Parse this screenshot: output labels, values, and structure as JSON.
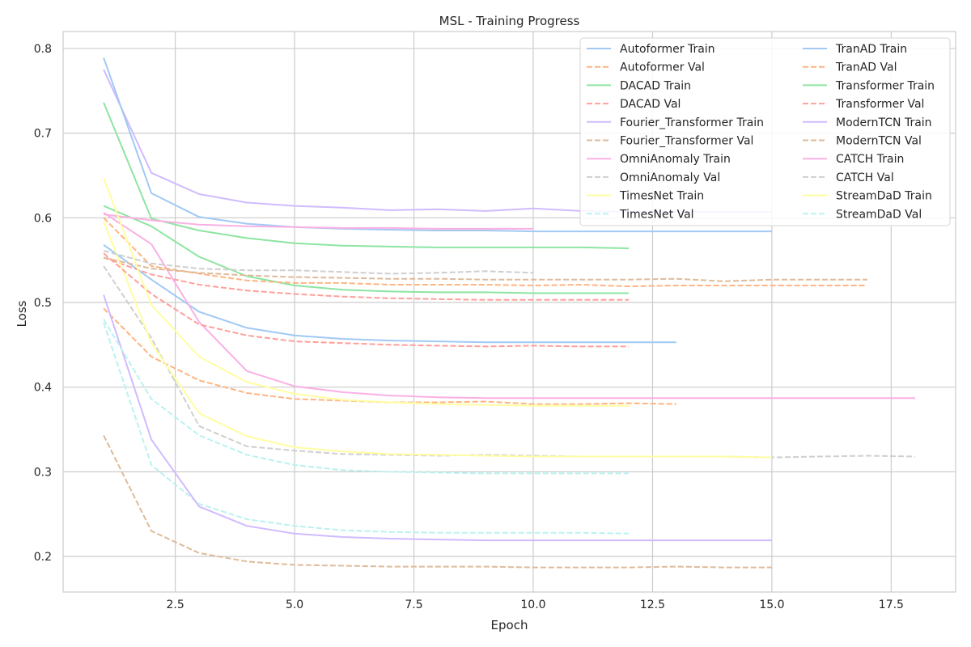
{
  "chart_data": {
    "type": "line",
    "title": "MSL - Training Progress",
    "xlabel": "Epoch",
    "ylabel": "Loss",
    "xlim": [
      0.15,
      18.85
    ],
    "ylim": [
      0.158,
      0.82
    ],
    "xticks": [
      2.5,
      5.0,
      7.5,
      10.0,
      12.5,
      15.0,
      17.5
    ],
    "xtick_labels": [
      "2.5",
      "5.0",
      "7.5",
      "10.0",
      "12.5",
      "15.0",
      "17.5"
    ],
    "yticks": [
      0.2,
      0.3,
      0.4,
      0.5,
      0.6,
      0.7,
      0.8
    ],
    "ytick_labels": [
      "0.2",
      "0.3",
      "0.4",
      "0.5",
      "0.6",
      "0.7",
      "0.8"
    ],
    "grid": true,
    "legend_position": "top-right",
    "legend_columns": 2,
    "series": [
      {
        "name": "Autoformer Train",
        "color": "#a1c9f4",
        "style": "solid",
        "x": [
          1,
          2,
          3,
          4,
          5,
          6,
          7,
          8,
          9,
          10,
          11,
          12,
          13
        ],
        "y": [
          0.568,
          0.527,
          0.489,
          0.47,
          0.461,
          0.457,
          0.455,
          0.454,
          0.453,
          0.453,
          0.453,
          0.453,
          0.453
        ]
      },
      {
        "name": "Autoformer Val",
        "color": "#ffb482",
        "style": "dashed",
        "x": [
          1,
          2,
          3,
          4,
          5,
          6,
          7,
          8,
          9,
          10,
          11,
          12,
          13
        ],
        "y": [
          0.493,
          0.436,
          0.408,
          0.393,
          0.386,
          0.384,
          0.382,
          0.382,
          0.383,
          0.38,
          0.38,
          0.381,
          0.38
        ]
      },
      {
        "name": "DACAD Train",
        "color": "#8de5a1",
        "style": "solid",
        "x": [
          1,
          2,
          3,
          4,
          5,
          6,
          7,
          8,
          9,
          10,
          11,
          12
        ],
        "y": [
          0.614,
          0.59,
          0.554,
          0.531,
          0.52,
          0.515,
          0.513,
          0.512,
          0.512,
          0.511,
          0.511,
          0.511
        ]
      },
      {
        "name": "DACAD Val",
        "color": "#ff9f9b",
        "style": "dashed",
        "x": [
          1,
          2,
          3,
          4,
          5,
          6,
          7,
          8,
          9,
          10,
          11,
          12
        ],
        "y": [
          0.553,
          0.533,
          0.521,
          0.514,
          0.51,
          0.507,
          0.505,
          0.504,
          0.503,
          0.503,
          0.503,
          0.503
        ]
      },
      {
        "name": "Fourier_Transformer Train",
        "color": "#d0bbff",
        "style": "solid",
        "x": [
          1,
          2,
          3,
          4,
          5,
          6,
          7,
          8,
          9,
          10,
          11,
          12,
          13,
          14,
          15
        ],
        "y": [
          0.775,
          0.653,
          0.628,
          0.618,
          0.614,
          0.612,
          0.609,
          0.61,
          0.608,
          0.611,
          0.608,
          0.607,
          0.607,
          0.607,
          0.607
        ]
      },
      {
        "name": "Fourier_Transformer Val",
        "color": "#debb9b",
        "style": "dashed",
        "x": [
          1,
          2,
          3,
          4,
          5,
          6,
          7,
          8,
          9,
          10,
          11,
          12,
          13,
          14,
          15
        ],
        "y": [
          0.343,
          0.23,
          0.204,
          0.194,
          0.19,
          0.189,
          0.188,
          0.188,
          0.188,
          0.187,
          0.187,
          0.187,
          0.188,
          0.187,
          0.187
        ]
      },
      {
        "name": "OmniAnomaly Train",
        "color": "#fab0e4",
        "style": "solid",
        "x": [
          1,
          2,
          3,
          4,
          5,
          6,
          7,
          8,
          9,
          10,
          11,
          12,
          13,
          14,
          15,
          16,
          17,
          18
        ],
        "y": [
          0.606,
          0.569,
          0.477,
          0.419,
          0.401,
          0.394,
          0.39,
          0.388,
          0.387,
          0.387,
          0.387,
          0.387,
          0.387,
          0.387,
          0.387,
          0.387,
          0.387,
          0.387
        ]
      },
      {
        "name": "OmniAnomaly Val",
        "color": "#cfcfcf",
        "style": "dashed",
        "x": [
          1,
          2,
          3,
          4,
          5,
          6,
          7,
          8,
          9,
          10,
          11,
          12,
          13,
          14,
          15,
          16,
          17,
          18
        ],
        "y": [
          0.543,
          0.458,
          0.354,
          0.33,
          0.325,
          0.321,
          0.32,
          0.319,
          0.32,
          0.319,
          0.318,
          0.318,
          0.318,
          0.318,
          0.317,
          0.318,
          0.319,
          0.318
        ]
      },
      {
        "name": "TimesNet Train",
        "color": "#fffea3",
        "style": "solid",
        "x": [
          1,
          2,
          3,
          4,
          5,
          6,
          7,
          8,
          9,
          10,
          11,
          12,
          13,
          14,
          15
        ],
        "y": [
          0.596,
          0.452,
          0.369,
          0.342,
          0.329,
          0.324,
          0.321,
          0.32,
          0.319,
          0.318,
          0.318,
          0.318,
          0.318,
          0.318,
          0.317
        ]
      },
      {
        "name": "TimesNet Val",
        "color": "#b9f2f0",
        "style": "dashed",
        "x": [
          1,
          2,
          3,
          4,
          5,
          6,
          7,
          8,
          9,
          10,
          11,
          12
        ],
        "y": [
          0.476,
          0.308,
          0.262,
          0.244,
          0.236,
          0.231,
          0.229,
          0.228,
          0.228,
          0.228,
          0.228,
          0.227
        ]
      },
      {
        "name": "TranAD Train",
        "color": "#a1c9f4",
        "style": "solid",
        "x": [
          1,
          2,
          3,
          4,
          5,
          6,
          7,
          8,
          9,
          10,
          11,
          12,
          13,
          14,
          15
        ],
        "y": [
          0.789,
          0.629,
          0.601,
          0.593,
          0.589,
          0.587,
          0.586,
          0.585,
          0.585,
          0.584,
          0.584,
          0.584,
          0.584,
          0.584,
          0.584
        ]
      },
      {
        "name": "TranAD Val",
        "color": "#ffb482",
        "style": "dashed",
        "x": [
          1,
          2,
          3,
          4,
          5,
          6,
          7,
          8,
          9,
          10,
          11,
          12,
          13,
          14,
          15,
          16,
          17
        ],
        "y": [
          0.6,
          0.543,
          0.534,
          0.526,
          0.523,
          0.523,
          0.521,
          0.521,
          0.521,
          0.52,
          0.521,
          0.519,
          0.52,
          0.52,
          0.52,
          0.52,
          0.52
        ]
      },
      {
        "name": "Transformer Train",
        "color": "#8de5a1",
        "style": "solid",
        "x": [
          1,
          2,
          3,
          4,
          5,
          6,
          7,
          8,
          9,
          10,
          11,
          12
        ],
        "y": [
          0.736,
          0.599,
          0.585,
          0.576,
          0.57,
          0.567,
          0.566,
          0.565,
          0.565,
          0.565,
          0.565,
          0.564
        ]
      },
      {
        "name": "Transformer Val",
        "color": "#ff9f9b",
        "style": "dashed",
        "x": [
          1,
          2,
          3,
          4,
          5,
          6,
          7,
          8,
          9,
          10,
          11,
          12
        ],
        "y": [
          0.558,
          0.51,
          0.474,
          0.461,
          0.454,
          0.452,
          0.45,
          0.449,
          0.448,
          0.449,
          0.448,
          0.448
        ]
      },
      {
        "name": "ModernTCN Train",
        "color": "#d0bbff",
        "style": "solid",
        "x": [
          1,
          2,
          3,
          4,
          5,
          6,
          7,
          8,
          9,
          10,
          11,
          12,
          13,
          14,
          15
        ],
        "y": [
          0.509,
          0.338,
          0.259,
          0.236,
          0.227,
          0.223,
          0.221,
          0.22,
          0.219,
          0.219,
          0.219,
          0.219,
          0.219,
          0.219,
          0.219
        ]
      },
      {
        "name": "ModernTCN Val",
        "color": "#debb9b",
        "style": "dashed",
        "x": [
          1,
          2,
          3,
          4,
          5,
          6,
          7,
          8,
          9,
          10,
          11,
          12,
          13,
          14,
          15,
          16,
          17
        ],
        "y": [
          0.553,
          0.54,
          0.535,
          0.532,
          0.53,
          0.529,
          0.528,
          0.528,
          0.527,
          0.527,
          0.527,
          0.527,
          0.528,
          0.525,
          0.527,
          0.527,
          0.527
        ]
      },
      {
        "name": "CATCH Train",
        "color": "#fab0e4",
        "style": "solid",
        "x": [
          1,
          2,
          3,
          4,
          5,
          6,
          7,
          8,
          9,
          10
        ],
        "y": [
          0.604,
          0.597,
          0.592,
          0.59,
          0.589,
          0.588,
          0.588,
          0.587,
          0.587,
          0.587
        ]
      },
      {
        "name": "CATCH Val",
        "color": "#cfcfcf",
        "style": "dashed",
        "x": [
          1,
          2,
          3,
          4,
          5,
          6,
          7,
          8,
          9,
          10
        ],
        "y": [
          0.561,
          0.546,
          0.54,
          0.538,
          0.538,
          0.536,
          0.534,
          0.535,
          0.537,
          0.535
        ]
      },
      {
        "name": "StreamDaD Train",
        "color": "#fffea3",
        "style": "solid",
        "x": [
          1,
          2,
          3,
          4,
          5,
          6,
          7,
          8,
          9,
          10,
          11,
          12
        ],
        "y": [
          0.647,
          0.497,
          0.436,
          0.406,
          0.392,
          0.385,
          0.382,
          0.38,
          0.379,
          0.378,
          0.378,
          0.378
        ]
      },
      {
        "name": "StreamDaD Val",
        "color": "#b9f2f0",
        "style": "dashed",
        "x": [
          1,
          2,
          3,
          4,
          5,
          6,
          7,
          8,
          9,
          10,
          11,
          12
        ],
        "y": [
          0.48,
          0.386,
          0.343,
          0.32,
          0.308,
          0.302,
          0.3,
          0.299,
          0.298,
          0.298,
          0.298,
          0.298
        ]
      }
    ]
  }
}
